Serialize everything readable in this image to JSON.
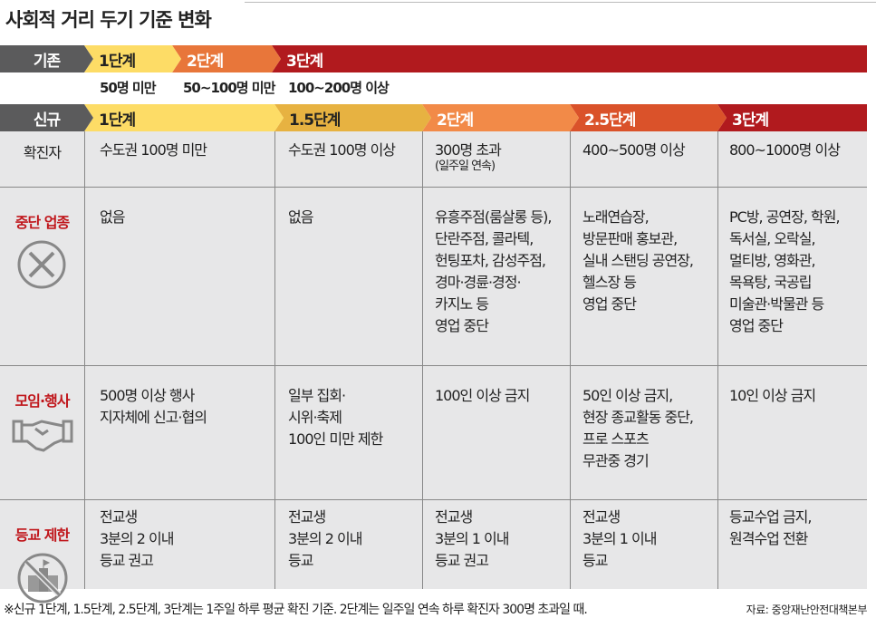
{
  "title": "사회적 거리 두기 기준 변화",
  "old": {
    "label": "기존",
    "stages": [
      {
        "label": "1단계",
        "criterion": "50명 미만",
        "color": "#fddc66"
      },
      {
        "label": "2단계",
        "criterion": "50~100명 미만",
        "color": "#e8763a"
      },
      {
        "label": "3단계",
        "criterion": "100~200명 이상",
        "color": "#b11a1e"
      }
    ]
  },
  "new": {
    "label": "신규",
    "stages": [
      {
        "label": "1단계",
        "color": "#fddc66"
      },
      {
        "label": "1.5단계",
        "color": "#e7b241"
      },
      {
        "label": "2단계",
        "color": "#f28a48"
      },
      {
        "label": "2.5단계",
        "color": "#da522a"
      },
      {
        "label": "3단계",
        "color": "#b11a1e"
      }
    ]
  },
  "rows": [
    {
      "label": "확진자",
      "icon": "",
      "cells": [
        "수도권 100명 미만",
        "수도권 100명 이상",
        "300명 초과",
        "400~500명 이상",
        "800~1000명 이상"
      ],
      "note": "(일주일 연속)"
    },
    {
      "label": "중단 업종",
      "icon": "x-circle-icon",
      "cells": [
        "없음",
        "없음",
        "유흥주점(룸살롱 등),\n단란주점, 콜라텍,\n헌팅포차, 감성주점,\n경마·경륜·경정·\n카지노 등\n영업 중단",
        "노래연습장,\n방문판매 홍보관,\n실내 스탠딩 공연장,\n헬스장 등\n영업 중단",
        "PC방, 공연장, 학원,\n독서실, 오락실,\n멀티방, 영화관,\n목욕탕, 국공립\n미술관·박물관 등\n영업 중단"
      ]
    },
    {
      "label": "모임·행사",
      "icon": "handshake-icon",
      "cells": [
        "500명 이상 행사\n지자체에 신고·협의",
        "일부 집회·\n시위·축제\n100인 미만 제한",
        "100인 이상 금지",
        "50인 이상 금지,\n현장 종교활동 중단,\n프로 스포츠\n무관중 경기",
        "10인 이상 금지"
      ]
    },
    {
      "label": "등교 제한",
      "icon": "no-school-icon",
      "cells": [
        "전교생\n3분의 2 이내\n등교 권고",
        "전교생\n3분의 2 이내\n등교",
        "전교생\n3분의 1 이내\n등교 권고",
        "전교생\n3분의 1 이내\n등교",
        "등교수업 금지,\n원격수업 전환"
      ]
    }
  ],
  "footnote": "※신규 1단계, 1.5단계, 2.5단계, 3단계는 1주일 하루 평균 확진 기준. 2단계는 일주일 연속 하루 확진자 300명 초과일 때.",
  "source": "자료: 중앙재난안전대책본부",
  "label_color": "#c0161b"
}
